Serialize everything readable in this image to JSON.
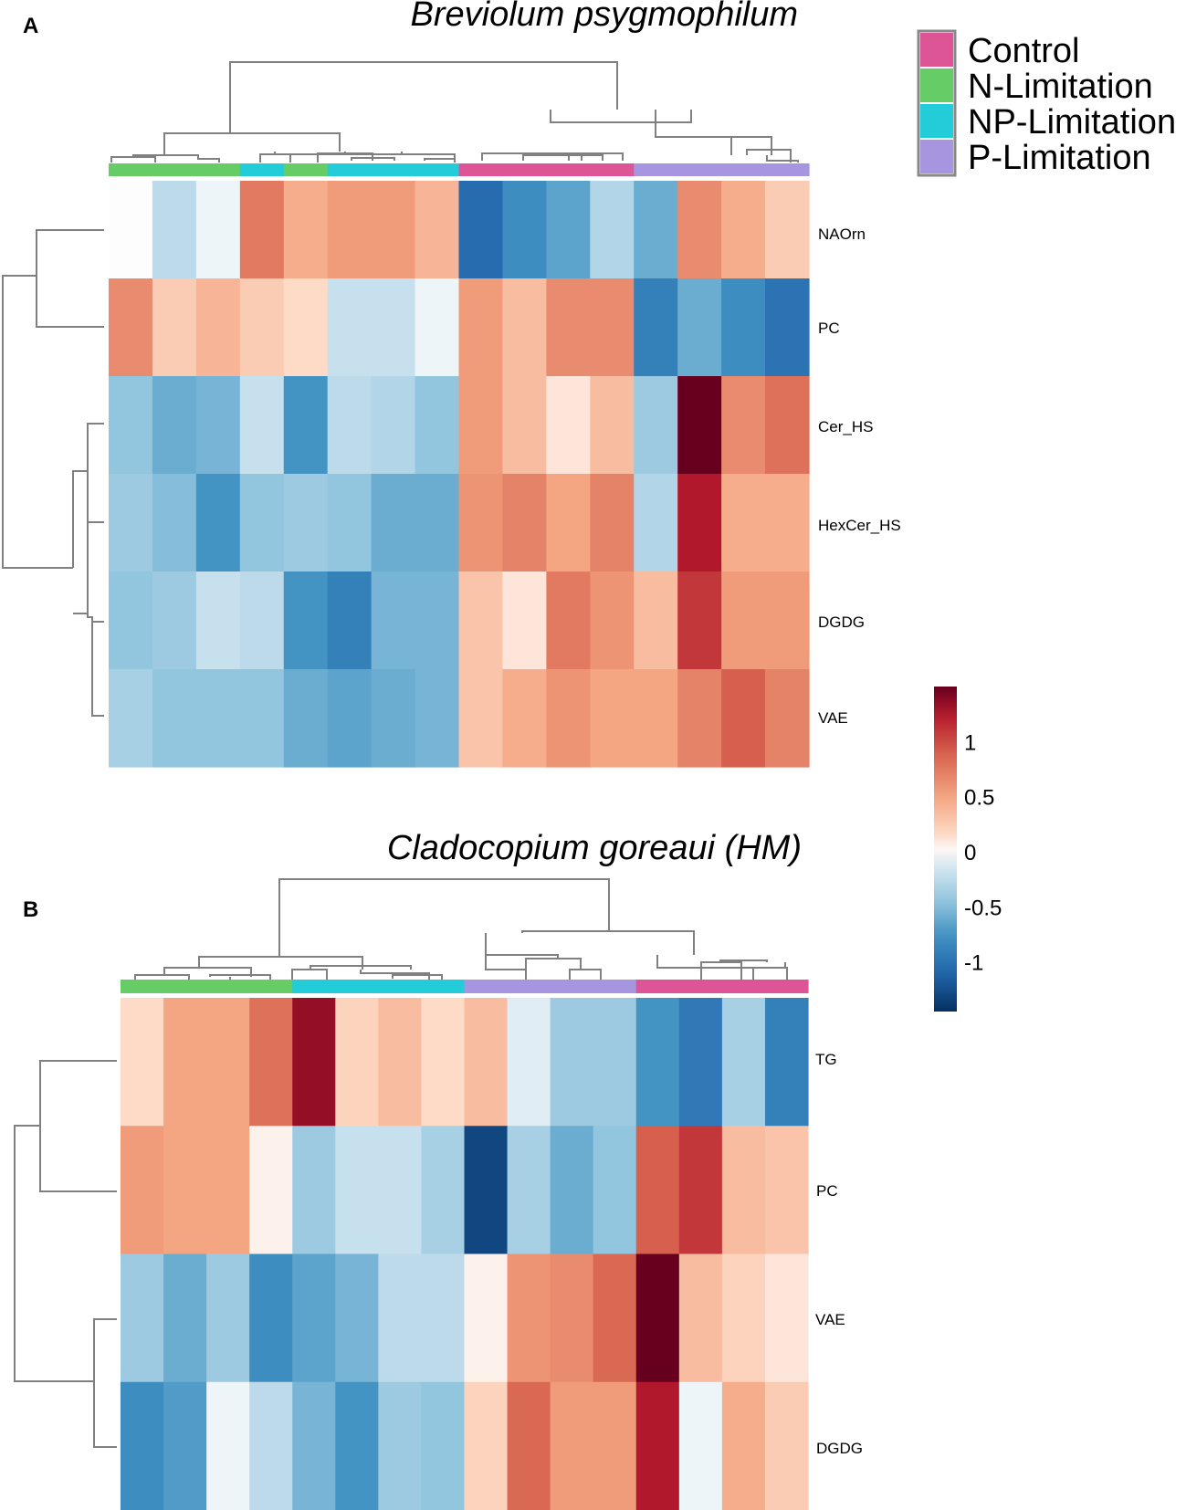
{
  "chart_data": [
    {
      "type": "heatmap",
      "panel": "A",
      "title": "Breviolum psygmophilum",
      "rows": [
        "NAOrn",
        "PC",
        "Cer_HS",
        "HexCer_HS",
        "DGDG",
        "VAE"
      ],
      "column_groups": [
        "N-Limitation",
        "N-Limitation",
        "N-Limitation",
        "NP-Limitation",
        "N-Limitation",
        "NP-Limitation",
        "NP-Limitation",
        "NP-Limitation",
        "Control",
        "Control",
        "Control",
        "Control",
        "P-Limitation",
        "P-Limitation",
        "P-Limitation",
        "P-Limitation"
      ],
      "values": [
        [
          0.0,
          -0.25,
          -0.05,
          0.75,
          0.45,
          0.55,
          0.55,
          0.4,
          -1.05,
          -0.8,
          -0.65,
          -0.3,
          -0.6,
          0.65,
          0.45,
          0.25
        ],
        [
          0.65,
          0.25,
          0.4,
          0.25,
          0.15,
          -0.2,
          -0.2,
          -0.05,
          0.55,
          0.35,
          0.65,
          0.65,
          -0.9,
          -0.6,
          -0.8,
          -1.0
        ],
        [
          -0.45,
          -0.6,
          -0.55,
          -0.2,
          -0.75,
          -0.25,
          -0.3,
          -0.45,
          0.55,
          0.35,
          0.1,
          0.35,
          -0.4,
          1.5,
          0.65,
          0.8
        ],
        [
          -0.4,
          -0.5,
          -0.75,
          -0.45,
          -0.4,
          -0.45,
          -0.6,
          -0.6,
          0.6,
          0.7,
          0.5,
          0.7,
          -0.3,
          1.25,
          0.45,
          0.45
        ],
        [
          -0.45,
          -0.4,
          -0.2,
          -0.25,
          -0.75,
          -0.9,
          -0.55,
          -0.55,
          0.3,
          0.1,
          0.75,
          0.6,
          0.35,
          1.1,
          0.55,
          0.55
        ],
        [
          -0.35,
          -0.45,
          -0.45,
          -0.45,
          -0.6,
          -0.65,
          -0.6,
          -0.55,
          0.3,
          0.45,
          0.6,
          0.5,
          0.5,
          0.7,
          0.9,
          0.7
        ]
      ],
      "color_scale": {
        "min": -1.45,
        "max": 1.5
      }
    },
    {
      "type": "heatmap",
      "panel": "B",
      "title": "Cladocopium goreaui (HM)",
      "rows": [
        "TG",
        "PC",
        "VAE",
        "DGDG"
      ],
      "column_groups": [
        "N-Limitation",
        "N-Limitation",
        "N-Limitation",
        "N-Limitation",
        "NP-Limitation",
        "NP-Limitation",
        "NP-Limitation",
        "NP-Limitation",
        "P-Limitation",
        "P-Limitation",
        "P-Limitation",
        "P-Limitation",
        "Control",
        "Control",
        "Control",
        "Control"
      ],
      "values": [
        [
          0.15,
          0.5,
          0.5,
          0.8,
          1.35,
          0.2,
          0.35,
          0.15,
          0.35,
          -0.1,
          -0.4,
          -0.4,
          -0.75,
          -0.95,
          -0.35,
          -0.9
        ],
        [
          0.55,
          0.5,
          0.5,
          0.05,
          -0.4,
          -0.2,
          -0.2,
          -0.35,
          -1.3,
          -0.35,
          -0.6,
          -0.45,
          0.9,
          1.1,
          0.35,
          0.3
        ],
        [
          -0.4,
          -0.6,
          -0.4,
          -0.8,
          -0.65,
          -0.55,
          -0.25,
          -0.25,
          0.05,
          0.6,
          0.65,
          0.85,
          1.5,
          0.35,
          0.2,
          0.1
        ],
        [
          -0.8,
          -0.7,
          -0.05,
          -0.25,
          -0.55,
          -0.75,
          -0.4,
          -0.45,
          0.2,
          0.85,
          0.55,
          0.55,
          1.25,
          -0.05,
          0.45,
          0.25
        ]
      ],
      "color_scale": {
        "min": -1.45,
        "max": 1.5
      }
    }
  ],
  "legend": {
    "groups": [
      {
        "name": "Control",
        "color": "#DE5597"
      },
      {
        "name": "N-Limitation",
        "color": "#66CC66"
      },
      {
        "name": "NP-Limitation",
        "color": "#22CCD8"
      },
      {
        "name": "P-Limitation",
        "color": "#A895E0"
      }
    ]
  },
  "colorbar": {
    "ticks": [
      {
        "value": 1,
        "label": "1"
      },
      {
        "value": 0.5,
        "label": "0.5"
      },
      {
        "value": 0,
        "label": "0"
      },
      {
        "value": -0.5,
        "label": "-0.5"
      },
      {
        "value": -1,
        "label": "-1"
      }
    ],
    "min": -1.45,
    "max": 1.5
  }
}
